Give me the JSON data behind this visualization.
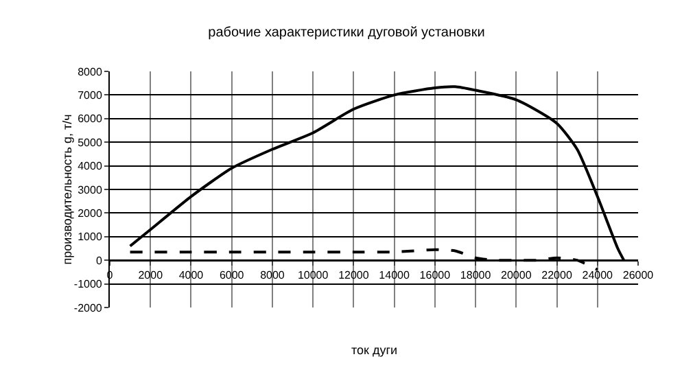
{
  "chart_data": {
    "type": "line",
    "title": "рабочие характеристики дуговой установки",
    "xlabel": "ток дуги",
    "ylabel": "производительность g, т/ч",
    "series": [
      {
        "color": "#000000",
        "line_style": "solid",
        "x": [
          1000,
          2000,
          4000,
          6000,
          8000,
          10000,
          12000,
          14000,
          16000,
          17000,
          18000,
          20000,
          22000,
          23000,
          24000,
          25000,
          25300
        ],
        "values": [
          600,
          1300,
          2700,
          3900,
          4700,
          5400,
          6400,
          7000,
          7300,
          7350,
          7200,
          6800,
          5800,
          4700,
          2700,
          500,
          0
        ]
      },
      {
        "color": "#000000",
        "line_style": "dashed",
        "x": [
          1000,
          2000,
          4000,
          6000,
          8000,
          10000,
          12000,
          14000,
          16000,
          17000,
          18000,
          19000,
          20000,
          21000,
          22000,
          23000,
          24000
        ],
        "values": [
          350,
          350,
          350,
          350,
          350,
          350,
          350,
          350,
          450,
          400,
          100,
          0,
          0,
          0,
          100,
          0,
          -400
        ]
      }
    ],
    "xlim": [
      0,
      26000
    ],
    "xticks": [
      0,
      2000,
      4000,
      6000,
      8000,
      10000,
      12000,
      14000,
      16000,
      18000,
      20000,
      22000,
      24000,
      26000
    ],
    "ylim": [
      -2000,
      8000
    ],
    "yticks": [
      -2000,
      -1000,
      0,
      1000,
      2000,
      3000,
      4000,
      5000,
      6000,
      7000,
      8000
    ],
    "grid": true,
    "marker": "none"
  }
}
